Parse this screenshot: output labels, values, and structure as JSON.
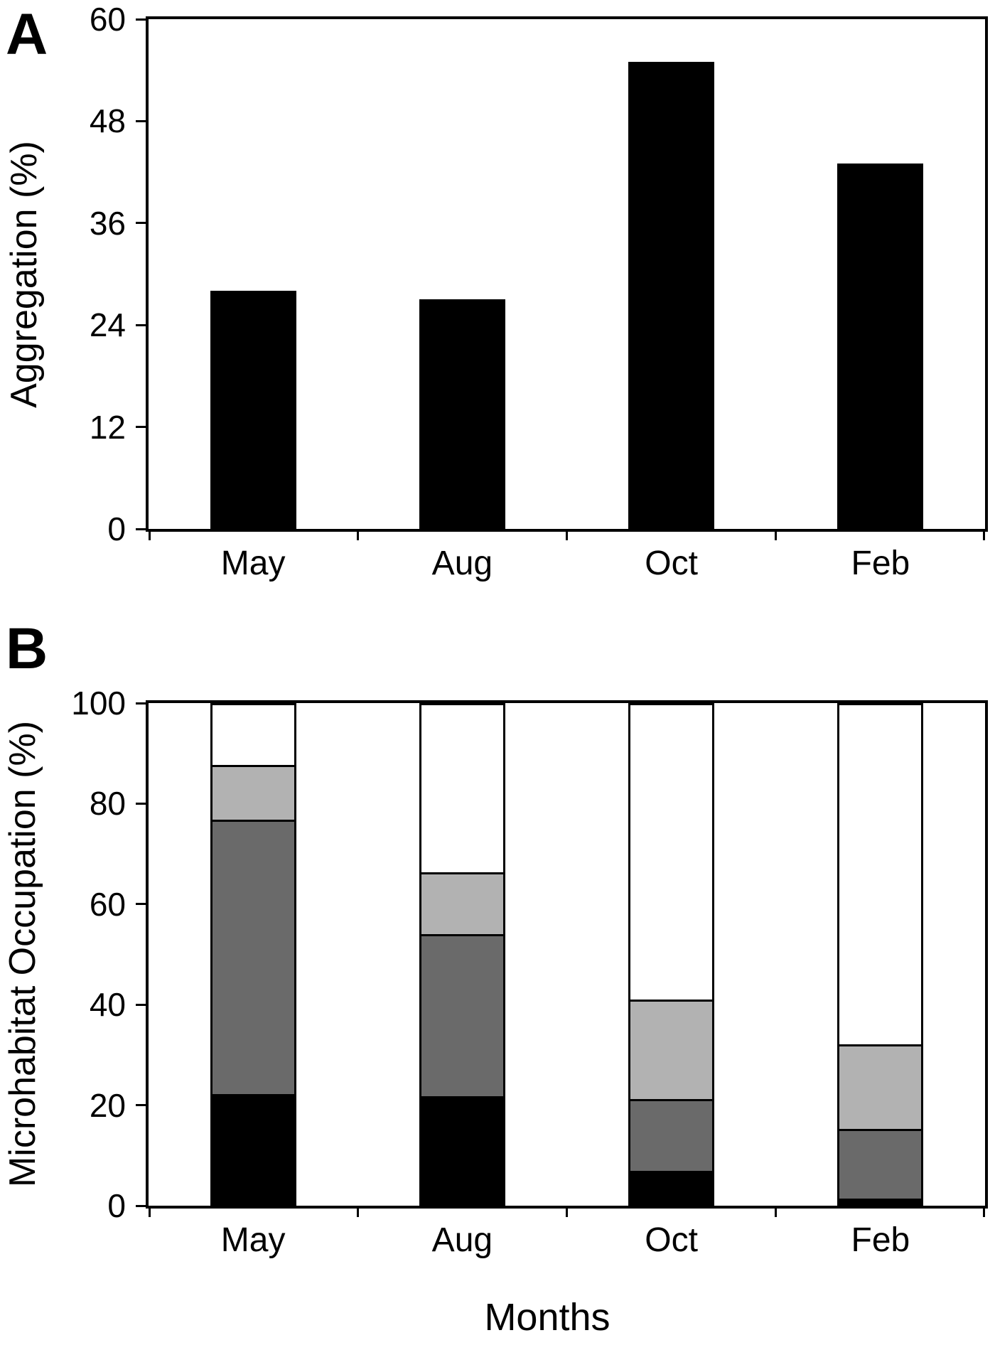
{
  "figure": {
    "background": "#ffffff",
    "panel_letters": [
      "A",
      "B"
    ]
  },
  "chart_data": [
    {
      "type": "bar",
      "panel": "A",
      "title": "",
      "categories": [
        "May",
        "Aug",
        "Oct",
        "Feb"
      ],
      "values": [
        28,
        27,
        55,
        43
      ],
      "xlabel": "",
      "ylabel": "Aggregation (%)",
      "ylim": [
        0,
        60
      ],
      "yticks": [
        0,
        12,
        24,
        36,
        48,
        60
      ],
      "grid": "off",
      "legend": "none",
      "bar_color": "#000000"
    },
    {
      "type": "stacked-bar",
      "panel": "B",
      "title": "",
      "categories": [
        "May",
        "Aug",
        "Oct",
        "Feb"
      ],
      "series": [
        {
          "name": "black",
          "color": "#000000",
          "values": [
            22,
            21.5,
            6.5,
            1
          ]
        },
        {
          "name": "dark-gray",
          "color": "#6a6a6a",
          "values": [
            55,
            32.5,
            14.5,
            14
          ]
        },
        {
          "name": "light-gray",
          "color": "#b2b2b2",
          "values": [
            11,
            12.5,
            20,
            17
          ]
        },
        {
          "name": "white",
          "color": "#ffffff",
          "values": [
            12,
            33.5,
            59,
            68
          ]
        }
      ],
      "xlabel": "Months",
      "ylabel": "Microhabitat Occupation (%)",
      "ylim": [
        0,
        100
      ],
      "yticks": [
        0,
        20,
        40,
        60,
        80,
        100
      ],
      "grid": "off",
      "legend": "none",
      "bar_width_fraction": 0.41
    }
  ]
}
